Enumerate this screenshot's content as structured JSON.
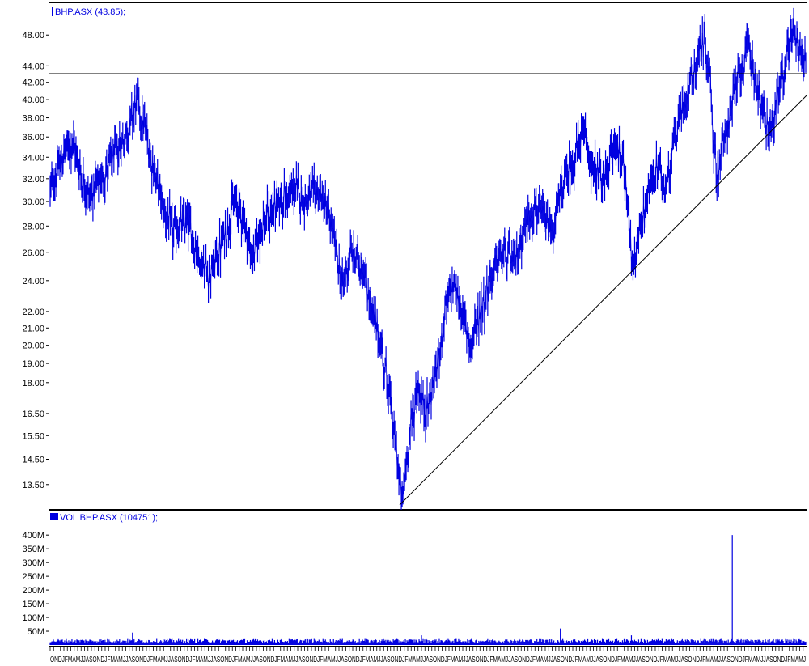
{
  "chart_data": [
    {
      "type": "line",
      "name": "price",
      "legend": "BHP.ASX (43.85);",
      "scale": "log",
      "ylim": [
        12.6,
        52.5
      ],
      "yticks": [
        "48.00",
        "44.00",
        "42.00",
        "40.00",
        "38.00",
        "36.00",
        "34.00",
        "32.00",
        "30.00",
        "28.00",
        "26.00",
        "24.00",
        "22.00",
        "21.00",
        "20.00",
        "19.00",
        "18.00",
        "16.50",
        "15.50",
        "14.50",
        "13.50"
      ],
      "grid": false,
      "color": "#0000e0",
      "anchors": [
        [
          0,
          31.0
        ],
        [
          18,
          34.5
        ],
        [
          28,
          35.5
        ],
        [
          40,
          32.0
        ],
        [
          48,
          30.5
        ],
        [
          60,
          31.5
        ],
        [
          75,
          33.5
        ],
        [
          95,
          36.5
        ],
        [
          108,
          40.0
        ],
        [
          120,
          36.0
        ],
        [
          128,
          33.0
        ],
        [
          140,
          29.5
        ],
        [
          152,
          27.5
        ],
        [
          170,
          28.5
        ],
        [
          185,
          25.5
        ],
        [
          198,
          24.5
        ],
        [
          215,
          27.0
        ],
        [
          228,
          30.0
        ],
        [
          238,
          29.0
        ],
        [
          250,
          25.5
        ],
        [
          262,
          28.0
        ],
        [
          278,
          29.5
        ],
        [
          290,
          30.5
        ],
        [
          305,
          31.0
        ],
        [
          318,
          30.0
        ],
        [
          332,
          31.0
        ],
        [
          342,
          29.5
        ],
        [
          352,
          27.0
        ],
        [
          362,
          23.5
        ],
        [
          372,
          26.0
        ],
        [
          388,
          25.0
        ],
        [
          398,
          22.0
        ],
        [
          410,
          20.0
        ],
        [
          420,
          17.5
        ],
        [
          430,
          14.5
        ],
        [
          436,
          12.8
        ],
        [
          445,
          15.5
        ],
        [
          455,
          17.8
        ],
        [
          465,
          16.5
        ],
        [
          478,
          18.5
        ],
        [
          490,
          22.0
        ],
        [
          500,
          24.0
        ],
        [
          512,
          21.5
        ],
        [
          522,
          20.0
        ],
        [
          532,
          22.0
        ],
        [
          542,
          23.5
        ],
        [
          555,
          25.5
        ],
        [
          565,
          26.0
        ],
        [
          575,
          25.0
        ],
        [
          585,
          27.5
        ],
        [
          600,
          29.5
        ],
        [
          612,
          28.5
        ],
        [
          622,
          27.5
        ],
        [
          635,
          31.5
        ],
        [
          648,
          33.5
        ],
        [
          660,
          36.5
        ],
        [
          672,
          33.0
        ],
        [
          685,
          31.5
        ],
        [
          698,
          35.0
        ],
        [
          708,
          34.5
        ],
        [
          716,
          30.0
        ],
        [
          722,
          24.0
        ],
        [
          728,
          27.0
        ],
        [
          740,
          30.5
        ],
        [
          752,
          33.0
        ],
        [
          762,
          31.0
        ],
        [
          772,
          35.5
        ],
        [
          782,
          38.5
        ],
        [
          792,
          42.0
        ],
        [
          802,
          45.0
        ],
        [
          810,
          47.5
        ],
        [
          818,
          42.0
        ],
        [
          822,
          35.0
        ],
        [
          826,
          32.5
        ],
        [
          836,
          36.0
        ],
        [
          848,
          41.0
        ],
        [
          858,
          44.5
        ],
        [
          866,
          46.5
        ],
        [
          874,
          42.0
        ],
        [
          882,
          39.0
        ],
        [
          892,
          36.5
        ],
        [
          902,
          40.5
        ],
        [
          912,
          45.0
        ],
        [
          920,
          49.5
        ],
        [
          928,
          46.5
        ],
        [
          936,
          44.0
        ]
      ]
    },
    {
      "type": "bar",
      "name": "volume",
      "legend": "VOL BHP.ASX (104751);",
      "ylim": [
        0,
        430
      ],
      "yunit": "M",
      "yticks": [
        "400M",
        "350M",
        "300M",
        "250M",
        "200M",
        "150M",
        "100M",
        "50M"
      ],
      "color": "#0000e0",
      "spikes": [
        [
          845,
          400
        ],
        [
          632,
          60
        ],
        [
          720,
          35
        ],
        [
          102,
          45
        ],
        [
          460,
          35
        ]
      ]
    }
  ],
  "line_color": "#000000",
  "x_axis_label": "ONDJFMAMJJASONDJFMAMJJASONDJFMAMJJASONDJFMAMJJASONDJFMAMJJASONDJFMAMJJASONDJFMAMJJASONDJFMAMJJASONDJFMAMJJASONDJFMAMJJASONDJFMAMJJASONDJFMAMJJASONDJFMAMJJASONDJFMAMJJASONDJFMAMJJASONDJFMAMJJASONDJFMAMJJASONDJFMAMJ"
}
